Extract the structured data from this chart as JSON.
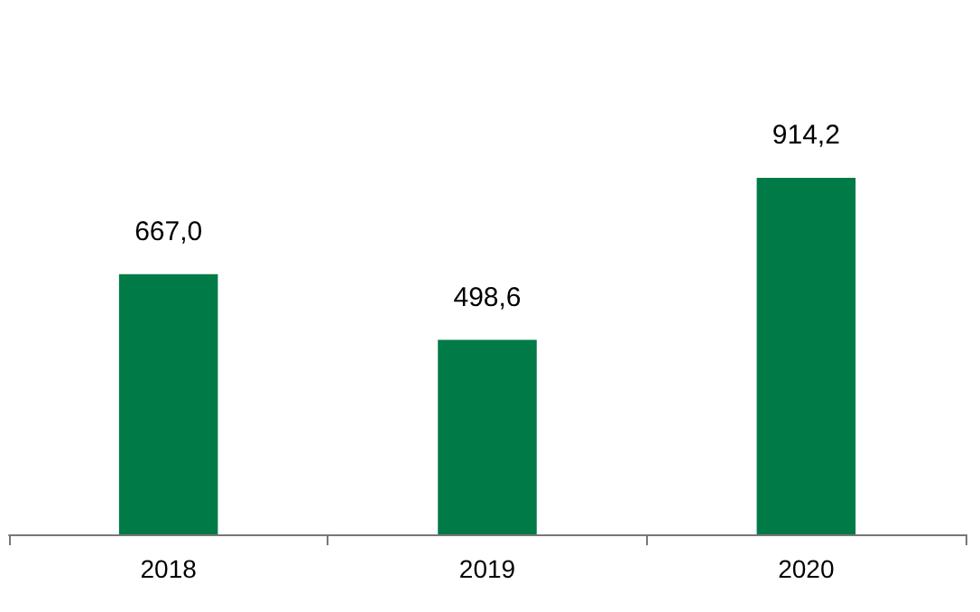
{
  "chart_data": {
    "type": "bar",
    "categories": [
      "2018",
      "2019",
      "2020"
    ],
    "values": [
      667.0,
      498.6,
      914.2
    ],
    "value_labels": [
      "667,0",
      "498,6",
      "914,2"
    ],
    "color": "#007a47",
    "grid": false
  }
}
